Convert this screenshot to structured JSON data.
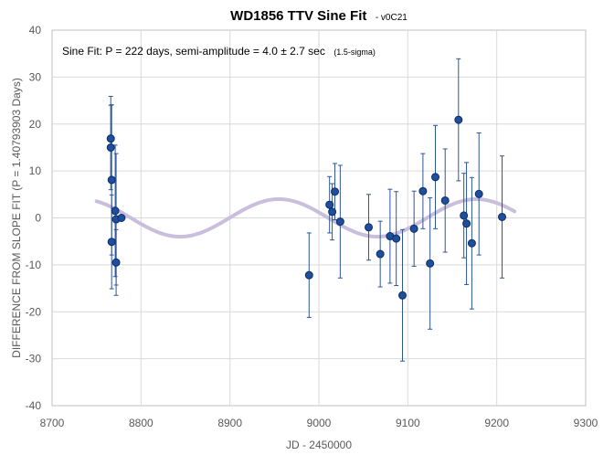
{
  "chart_data": {
    "type": "scatter",
    "title": "WD1856 TTV Sine Fit",
    "subtitle": "- v0C21",
    "xlabel": "JD - 2450000",
    "ylabel": "DIFFERENCE FROM SLOPE FIT (P = 1.40793903 Days)",
    "xlim": [
      8700,
      9300
    ],
    "ylim": [
      -40,
      40
    ],
    "xticks": [
      8700,
      8800,
      8900,
      9000,
      9100,
      9200,
      9300
    ],
    "yticks": [
      -40,
      -30,
      -20,
      -10,
      0,
      10,
      20,
      30,
      40
    ],
    "grid": true,
    "legend": "none",
    "annotation": {
      "main": "Sine Fit:  P = 222 days, semi-amplitude = 4.0 ± 2.7 sec",
      "note": "(1.5-sigma)"
    },
    "colors": {
      "points": "#1f4e9c",
      "point_edge": "#0d2c66",
      "error_bars": "#2e5597",
      "sine_fit": "#c9bfdc",
      "grid": "#d9d9d9",
      "frame": "#bfbfbf"
    },
    "sine_fit": {
      "period": 222,
      "amplitude": 4.0,
      "phase_peak_x": 8955,
      "offset": 0,
      "x_range": [
        8750,
        9220
      ]
    },
    "series": [
      {
        "x": [
          8766,
          8766,
          8767,
          8767,
          8771,
          8772,
          8772,
          8778,
          8989,
          9012,
          9015,
          9018,
          9024,
          9056,
          9069,
          9080,
          9087,
          9094,
          9107,
          9117,
          9125,
          9131,
          9142,
          9157,
          9163,
          9166,
          9172,
          9180,
          9206
        ],
        "y": [
          16.9,
          15.0,
          8.1,
          -5.1,
          1.5,
          -0.3,
          -9.5,
          0.0,
          -12.2,
          2.8,
          1.3,
          5.6,
          -0.8,
          -2.0,
          -7.7,
          -3.9,
          -4.4,
          -16.5,
          -2.3,
          5.7,
          -9.7,
          8.7,
          3.7,
          20.9,
          0.5,
          -1.2,
          -5.4,
          5.1,
          0.2
        ],
        "err": [
          9.0,
          9.0,
          16.0,
          10.0,
          14.0,
          14.0,
          7.0,
          0.0,
          9.0,
          6.0,
          6.0,
          6.0,
          12.0,
          7.0,
          7.0,
          10.0,
          10.0,
          14.0,
          8.0,
          8.0,
          14.0,
          11.0,
          11.0,
          13.0,
          9.0,
          13.0,
          14.0,
          13.0,
          13.0
        ]
      }
    ]
  }
}
